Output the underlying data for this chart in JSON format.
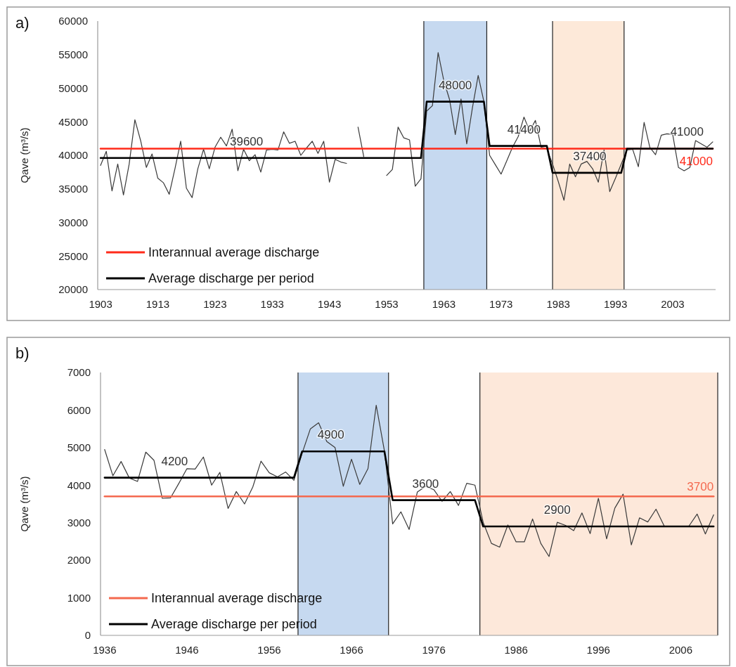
{
  "chart_data": [
    {
      "type": "line",
      "title": "a)",
      "ylabel": "Qave (m³/s)",
      "xlim": [
        1902.5,
        2010.5
      ],
      "xticks": [
        1903,
        1913,
        1923,
        1933,
        1943,
        1953,
        1963,
        1973,
        1983,
        1993,
        2003
      ],
      "ylim": [
        20000,
        60000
      ],
      "yticks": [
        20000,
        25000,
        30000,
        35000,
        40000,
        45000,
        50000,
        55000,
        60000
      ],
      "grid": false,
      "legend": "bottom left",
      "x": [
        1903,
        1904,
        1905,
        1906,
        1907,
        1908,
        1909,
        1910,
        1911,
        1912,
        1913,
        1914,
        1915,
        1916,
        1917,
        1918,
        1919,
        1920,
        1921,
        1922,
        1923,
        1924,
        1925,
        1926,
        1927,
        1928,
        1929,
        1930,
        1931,
        1932,
        1933,
        1934,
        1935,
        1936,
        1937,
        1938,
        1939,
        1940,
        1941,
        1942,
        1943,
        1944,
        1945,
        1946,
        1947,
        1948,
        1949,
        1950,
        1951,
        1952,
        1953,
        1954,
        1955,
        1956,
        1957,
        1958,
        1959,
        1960,
        1961,
        1962,
        1963,
        1964,
        1965,
        1966,
        1967,
        1968,
        1969,
        1970,
        1971,
        1972,
        1973,
        1974,
        1975,
        1976,
        1977,
        1978,
        1979,
        1980,
        1981,
        1982,
        1983,
        1984,
        1985,
        1986,
        1987,
        1988,
        1989,
        1990,
        1991,
        1992,
        1993,
        1994,
        1995,
        1996,
        1997,
        1998,
        1999,
        2000,
        2001,
        2002,
        2003,
        2004,
        2005,
        2006,
        2007,
        2008,
        2009,
        2010
      ],
      "series": [
        {
          "color": "#3a3a3a",
          "values": [
            38500,
            40600,
            34700,
            38700,
            34100,
            38700,
            45300,
            42200,
            38200,
            40200,
            36600,
            35900,
            34200,
            38000,
            42100,
            35100,
            33700,
            38000,
            40900,
            38000,
            41200,
            42700,
            41400,
            43900,
            37700,
            40900,
            39200,
            40100,
            37500,
            40800,
            40900,
            40800,
            43500,
            41800,
            42100,
            40000,
            41100,
            42100,
            40300,
            42100,
            36000,
            39400,
            39000,
            38800,
            null,
            44200,
            39800,
            null,
            null,
            null,
            37000,
            37900,
            44200,
            42600,
            42300,
            35400,
            36500,
            46600,
            47400,
            55300,
            51100,
            48300,
            43100,
            48400,
            41700,
            47100,
            51900,
            48000,
            40000,
            38600,
            37200,
            39200,
            41200,
            42800,
            45700,
            43600,
            45200,
            41200,
            41000,
            38700,
            36100,
            33300,
            38700,
            36800,
            38700,
            39100,
            38000,
            36000,
            40800,
            34600,
            36600,
            38700,
            40800,
            40900,
            38300,
            44900,
            41200,
            40100,
            43000,
            43200,
            43100,
            38200,
            37700,
            38200,
            42200,
            41700,
            41200,
            42000
          ]
        },
        {
          "name": "Interannual average discharge",
          "color": "#ff2a1a",
          "x": [
            1903,
            2010
          ],
          "values": [
            41000,
            41000
          ],
          "value_labels": [
            null,
            "41000"
          ]
        },
        {
          "name": "Average discharge per period",
          "color": "#000000",
          "values": [
            39600,
            39600,
            39600,
            39600,
            39600,
            39600,
            39600,
            39600,
            39600,
            39600,
            39600,
            39600,
            39600,
            39600,
            39600,
            39600,
            39600,
            39600,
            39600,
            39600,
            39600,
            39600,
            39600,
            39600,
            39600,
            39600,
            39600,
            39600,
            39600,
            39600,
            39600,
            39600,
            39600,
            39600,
            39600,
            39600,
            39600,
            39600,
            39600,
            39600,
            39600,
            39600,
            39600,
            39600,
            39600,
            39600,
            39600,
            39600,
            39600,
            39600,
            39600,
            39600,
            39600,
            39600,
            39600,
            39600,
            39600,
            48000,
            48000,
            48000,
            48000,
            48000,
            48000,
            48000,
            48000,
            48000,
            48000,
            48000,
            41400,
            41400,
            41400,
            41400,
            41400,
            41400,
            41400,
            41400,
            41400,
            41400,
            41400,
            37400,
            37400,
            37400,
            37400,
            37400,
            37400,
            37400,
            37400,
            37400,
            37400,
            37400,
            37400,
            37400,
            41000,
            41000,
            41000,
            41000,
            41000,
            41000,
            41000,
            41000,
            41000,
            41000,
            41000,
            41000,
            41000,
            41000,
            41000,
            41000
          ]
        }
      ],
      "bands": [
        {
          "axis": "x",
          "from": 1959.5,
          "to": 1970.5,
          "color": "#c6d9f0"
        },
        {
          "axis": "x",
          "from": 1982,
          "to": 1994.5,
          "color": "#fde9d9"
        }
      ],
      "annotations": [
        {
          "text": "39600",
          "x": 1928.5,
          "y": 39600
        },
        {
          "text": "48000",
          "x": 1965,
          "y": 48000
        },
        {
          "text": "41400",
          "x": 1977,
          "y": 41400
        },
        {
          "text": "37400",
          "x": 1988.5,
          "y": 37400
        },
        {
          "text": "41000",
          "x": 2005.5,
          "y": 41000
        }
      ]
    },
    {
      "type": "line",
      "title": "b)",
      "ylabel": "Qave (m³/s)",
      "xlim": [
        1935.5,
        2010.5
      ],
      "xticks": [
        1936,
        1946,
        1956,
        1966,
        1976,
        1986,
        1996,
        2006
      ],
      "ylim": [
        0,
        7000
      ],
      "yticks": [
        0,
        1000,
        2000,
        3000,
        4000,
        5000,
        6000,
        7000
      ],
      "grid": false,
      "legend": "bottom left",
      "x": [
        1936,
        1937,
        1938,
        1939,
        1940,
        1941,
        1942,
        1943,
        1944,
        1945,
        1946,
        1947,
        1948,
        1949,
        1950,
        1951,
        1952,
        1953,
        1954,
        1955,
        1956,
        1957,
        1958,
        1959,
        1960,
        1961,
        1962,
        1963,
        1964,
        1965,
        1966,
        1967,
        1968,
        1969,
        1970,
        1971,
        1972,
        1973,
        1974,
        1975,
        1976,
        1977,
        1978,
        1979,
        1980,
        1981,
        1982,
        1983,
        1984,
        1985,
        1986,
        1987,
        1988,
        1989,
        1990,
        1991,
        1992,
        1993,
        1994,
        1995,
        1996,
        1997,
        1998,
        1999,
        2000,
        2001,
        2002,
        2003,
        2004,
        2005,
        2006,
        2007,
        2008,
        2009,
        2010
      ],
      "series": [
        {
          "color": "#3a3a3a",
          "values": [
            4950,
            4250,
            4630,
            4190,
            4100,
            4880,
            4660,
            3650,
            3660,
            4040,
            4440,
            4430,
            4750,
            4000,
            4340,
            3380,
            3830,
            3500,
            3950,
            4640,
            4330,
            4220,
            4350,
            4130,
            4850,
            5500,
            5660,
            5160,
            5000,
            3970,
            4690,
            4020,
            4440,
            6130,
            4910,
            2970,
            3290,
            2820,
            3820,
            3970,
            3880,
            3570,
            3830,
            3460,
            4050,
            4000,
            3010,
            2450,
            2350,
            2940,
            2490,
            2490,
            3100,
            2450,
            2100,
            3010,
            2930,
            2790,
            3260,
            2710,
            3650,
            2570,
            3390,
            3760,
            2410,
            3130,
            3020,
            3360,
            2910,
            null,
            null,
            2910,
            3230,
            2700,
            3210
          ]
        },
        {
          "name": "Interannual average discharge",
          "color": "#f4694f",
          "x": [
            1936,
            2010
          ],
          "values": [
            3700,
            3700
          ],
          "value_labels": [
            null,
            "3700"
          ]
        },
        {
          "name": "Average discharge per period",
          "color": "#000000",
          "values": [
            4200,
            4200,
            4200,
            4200,
            4200,
            4200,
            4200,
            4200,
            4200,
            4200,
            4200,
            4200,
            4200,
            4200,
            4200,
            4200,
            4200,
            4200,
            4200,
            4200,
            4200,
            4200,
            4200,
            4200,
            4900,
            4900,
            4900,
            4900,
            4900,
            4900,
            4900,
            4900,
            4900,
            4900,
            4900,
            3600,
            3600,
            3600,
            3600,
            3600,
            3600,
            3600,
            3600,
            3600,
            3600,
            3600,
            2900,
            2900,
            2900,
            2900,
            2900,
            2900,
            2900,
            2900,
            2900,
            2900,
            2900,
            2900,
            2900,
            2900,
            2900,
            2900,
            2900,
            2900,
            2900,
            2900,
            2900,
            2900,
            2900,
            2900,
            2900,
            2900,
            2900,
            2900,
            2900
          ]
        }
      ],
      "bands": [
        {
          "axis": "x",
          "from": 1959.5,
          "to": 1970.5,
          "color": "#c6d9f0"
        },
        {
          "axis": "x",
          "from": 1981.6,
          "to": 2010.5,
          "color": "#fde8da"
        }
      ],
      "annotations": [
        {
          "text": "4200",
          "x": 1944.5,
          "y": 4200
        },
        {
          "text": "4900",
          "x": 1963.5,
          "y": 4900
        },
        {
          "text": "3600",
          "x": 1975,
          "y": 3600
        },
        {
          "text": "2900",
          "x": 1991,
          "y": 2900
        }
      ]
    }
  ]
}
